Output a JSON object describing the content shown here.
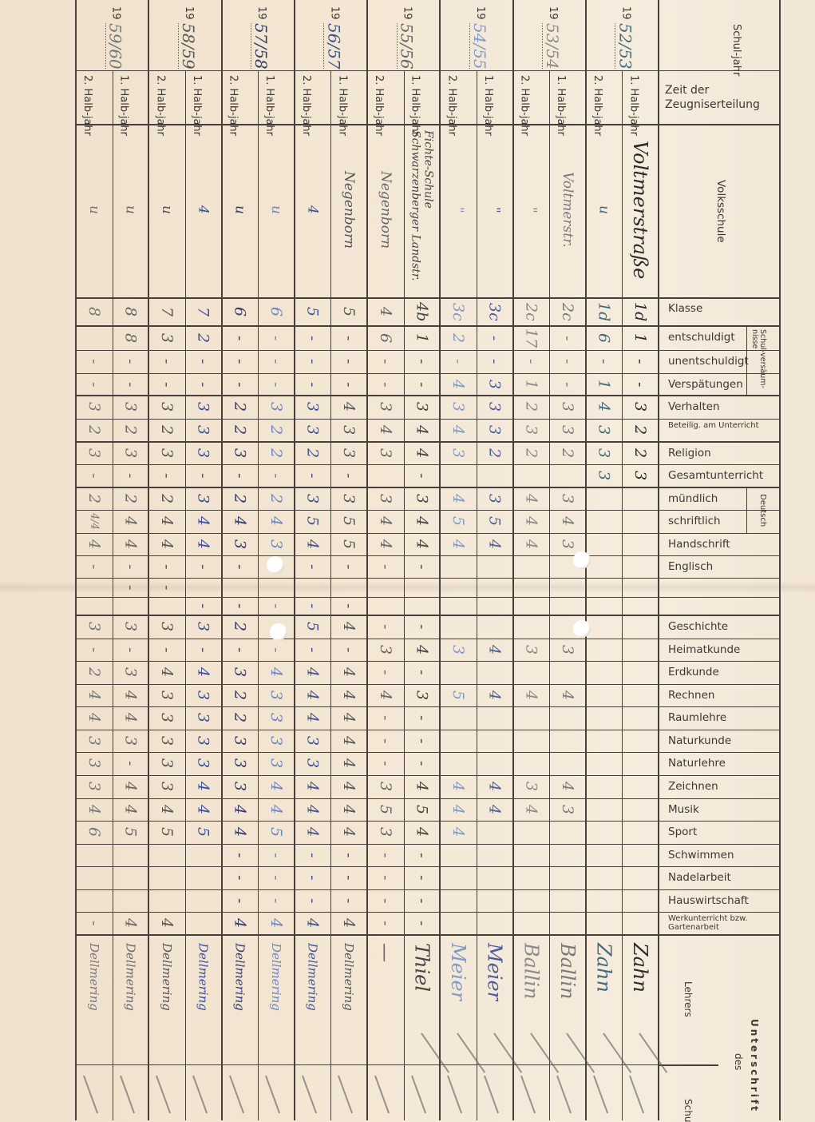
{
  "form": {
    "schuljahr_label": "Schul-jahr",
    "zeit_label": "Zeit der Zeugniserteilung",
    "volksschule_label": "Volksschule",
    "year_prefix": "19",
    "half1_label": "1. Halb-jahr",
    "half2_label": "2. Halb-jahr",
    "versaeumnisse_label": "Schul-versäum-nisse",
    "deutsch_label": "Deutsch",
    "unterschrift_label": "Unterschrift",
    "des_label": "des",
    "lehrers_label": "Lehrers",
    "schul_label": "Schu"
  },
  "years": [
    "52/53",
    "53/54",
    "54/55",
    "55/56",
    "56/57",
    "57/58",
    "58/59",
    "59/60"
  ],
  "columns_ink": [
    "#2a2a2a",
    "#3f6b78",
    "#7a7a7a",
    "#8a8a8a",
    "#4a5d9a",
    "#7f9cc8",
    "#444444",
    "#666666",
    "#555555",
    "#3e5190",
    "#6e86c0",
    "#333a6a",
    "#3a4ea0",
    "#555555",
    "#666666",
    "#777777"
  ],
  "schools": [
    "Voltmerstraße",
    "u",
    "Voltmerstr.",
    "\"",
    "\"",
    "\"",
    "Fichte-Schule Schwarzenberger Landstr.",
    "Negenborn",
    "Negenborn",
    "4",
    "u",
    "u",
    "4",
    "u",
    "u",
    "u"
  ],
  "rows": [
    {
      "label": "Klasse",
      "grades": [
        "1d",
        "1d",
        "2c",
        "2c",
        "3c",
        "3c",
        "4b",
        "4",
        "5",
        "5",
        "6",
        "6",
        "7",
        "7",
        "8",
        "8"
      ]
    },
    {
      "label": "entschuldigt",
      "grades": [
        "1",
        "6",
        "-",
        "17",
        "-",
        "2",
        "1",
        "6",
        "-",
        "-",
        "-",
        "-",
        "2",
        "3",
        "8",
        ""
      ]
    },
    {
      "label": "unentschuldigt",
      "grades": [
        "-",
        "-",
        "-",
        "-",
        "-",
        "-",
        "-",
        "-",
        "-",
        "-",
        "-",
        "-",
        "-",
        "-",
        "-",
        "-"
      ]
    },
    {
      "label": "Verspätungen",
      "grades": [
        "-",
        "1",
        "-",
        "1",
        "3",
        "4",
        "-",
        "-",
        "-",
        "-",
        "-",
        "-",
        "-",
        "-",
        "-",
        "-"
      ]
    },
    {
      "label": "Verhalten",
      "grades": [
        "3",
        "4",
        "3",
        "2",
        "3",
        "3",
        "3",
        "3",
        "4",
        "3",
        "3",
        "2",
        "3",
        "3",
        "3",
        "3"
      ]
    },
    {
      "label": "Beteilig. am Unterricht",
      "grades": [
        "2",
        "3",
        "3",
        "3",
        "3",
        "4",
        "4",
        "4",
        "3",
        "3",
        "2",
        "2",
        "3",
        "2",
        "2",
        "2"
      ]
    },
    {
      "label": "Religion",
      "grades": [
        "2",
        "3",
        "2",
        "2",
        "2",
        "3",
        "4",
        "3",
        "3",
        "2",
        "2",
        "3",
        "3",
        "3",
        "3",
        "3"
      ]
    },
    {
      "label": "Gesamtunterricht",
      "grades": [
        "3",
        "3",
        "",
        "",
        "",
        "",
        "-",
        "",
        "-",
        "-",
        "-",
        "-",
        "-",
        "-",
        "-",
        "-"
      ]
    },
    {
      "label": "mündlich",
      "grades": [
        "",
        "",
        "3",
        "4",
        "3",
        "4",
        "3",
        "3",
        "3",
        "3",
        "2",
        "2",
        "3",
        "2",
        "2",
        "2"
      ]
    },
    {
      "label": "schriftlich",
      "grades": [
        "",
        "",
        "4",
        "4",
        "5",
        "5",
        "4",
        "4",
        "5",
        "5",
        "4",
        "4",
        "4",
        "4",
        "4",
        "4/4"
      ]
    },
    {
      "label": "Handschrift",
      "grades": [
        "",
        "",
        "3",
        "4",
        "4",
        "4",
        "4",
        "4",
        "5",
        "4",
        "3",
        "3",
        "4",
        "4",
        "4",
        "4"
      ]
    },
    {
      "label": "Englisch",
      "grades": [
        "",
        "",
        "",
        "",
        "",
        "",
        "-",
        "-",
        "-",
        "-",
        "",
        "-",
        "-",
        "-",
        "-",
        "-"
      ]
    },
    {
      "label": "",
      "grades": [
        "",
        "",
        "",
        "",
        "",
        "",
        "",
        "",
        "",
        "",
        "",
        "",
        "",
        "-",
        "-",
        ""
      ]
    },
    {
      "label": "",
      "grades": [
        "",
        "",
        "",
        "",
        "",
        "",
        "",
        "",
        "-",
        "-",
        "-",
        "-",
        "-",
        "",
        "",
        ""
      ]
    },
    {
      "label": "Geschichte",
      "grades": [
        "",
        "",
        "",
        "",
        "",
        "",
        "-",
        "-",
        "4",
        "5",
        "",
        "2",
        "3",
        "3",
        "3",
        "3"
      ]
    },
    {
      "label": "Heimatkunde",
      "grades": [
        "",
        "",
        "3",
        "3",
        "4",
        "3",
        "4",
        "3",
        "-",
        "-",
        "-",
        "-",
        "-",
        "-",
        "-",
        "-"
      ]
    },
    {
      "label": "Erdkunde",
      "grades": [
        "",
        "",
        "",
        "",
        "",
        "",
        "-",
        "-",
        "4",
        "4",
        "4",
        "3",
        "4",
        "4",
        "3",
        "2"
      ]
    },
    {
      "label": "Rechnen",
      "grades": [
        "",
        "",
        "4",
        "4",
        "4",
        "5",
        "3",
        "4",
        "4",
        "4",
        "3",
        "2",
        "3",
        "3",
        "4",
        "4"
      ]
    },
    {
      "label": "Raumlehre",
      "grades": [
        "",
        "",
        "",
        "",
        "",
        "",
        "-",
        "-",
        "4",
        "4",
        "3",
        "2",
        "3",
        "3",
        "4",
        "4"
      ]
    },
    {
      "label": "Naturkunde",
      "grades": [
        "",
        "",
        "",
        "",
        "",
        "",
        "-",
        "-",
        "4",
        "3",
        "3",
        "3",
        "3",
        "3",
        "3",
        "3"
      ]
    },
    {
      "label": "Naturlehre",
      "grades": [
        "",
        "",
        "",
        "",
        "",
        "",
        "-",
        "-",
        "4",
        "3",
        "3",
        "3",
        "3",
        "3",
        "-",
        "3"
      ]
    },
    {
      "label": "Zeichnen",
      "grades": [
        "",
        "",
        "4",
        "3",
        "4",
        "4",
        "4",
        "3",
        "4",
        "4",
        "4",
        "3",
        "4",
        "3",
        "4",
        "3"
      ]
    },
    {
      "label": "Musik",
      "grades": [
        "",
        "",
        "3",
        "4",
        "4",
        "4",
        "5",
        "5",
        "4",
        "4",
        "4",
        "4",
        "4",
        "4",
        "4",
        "4"
      ]
    },
    {
      "label": "Sport",
      "grades": [
        "",
        "",
        "",
        "",
        "",
        "4",
        "4",
        "3",
        "4",
        "4",
        "5",
        "4",
        "5",
        "5",
        "5",
        "6"
      ]
    },
    {
      "label": "Schwimmen",
      "grades": [
        "",
        "",
        "",
        "",
        "",
        "",
        "-",
        "-",
        "-",
        "-",
        "-",
        "-",
        "",
        "",
        "",
        ""
      ]
    },
    {
      "label": "Nadelarbeit",
      "grades": [
        "",
        "",
        "",
        "",
        "",
        "",
        "-",
        "-",
        "-",
        "-",
        "-",
        "-",
        "",
        "",
        "",
        ""
      ]
    },
    {
      "label": "Hauswirtschaft",
      "grades": [
        "",
        "",
        "",
        "",
        "",
        "",
        "-",
        "-",
        "-",
        "-",
        "-",
        "-",
        "",
        "",
        "",
        ""
      ]
    },
    {
      "label": "Werkunterricht bzw. Gartenarbeit",
      "grades": [
        "",
        "",
        "",
        "",
        "",
        "",
        "-",
        "-",
        "4",
        "4",
        "4",
        "4",
        "",
        "4",
        "4",
        "-"
      ]
    }
  ],
  "teacher_signatures": [
    "Zahn",
    "Zahn",
    "Ballin",
    "Ballin",
    "Meier",
    "Meier",
    "Thiel",
    "—",
    "Dellmering",
    "Dellmering",
    "Dellmering",
    "Dellmering",
    "Dellmering",
    "Dellmering",
    "Dellmering",
    "Dellmering"
  ]
}
